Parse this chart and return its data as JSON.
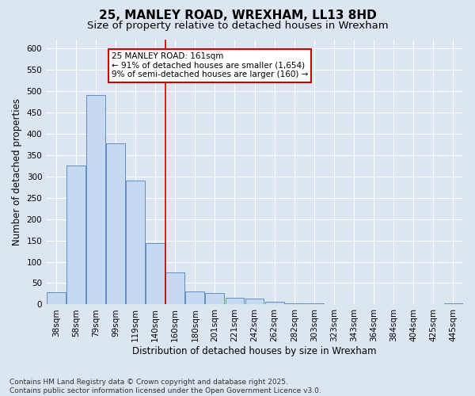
{
  "title": "25, MANLEY ROAD, WREXHAM, LL13 8HD",
  "subtitle": "Size of property relative to detached houses in Wrexham",
  "xlabel": "Distribution of detached houses by size in Wrexham",
  "ylabel": "Number of detached properties",
  "bar_color": "#c5d9f1",
  "bar_edge_color": "#4f81bd",
  "bar_edge_width": 0.6,
  "categories": [
    "38sqm",
    "58sqm",
    "79sqm",
    "99sqm",
    "119sqm",
    "140sqm",
    "160sqm",
    "180sqm",
    "201sqm",
    "221sqm",
    "242sqm",
    "262sqm",
    "282sqm",
    "303sqm",
    "323sqm",
    "343sqm",
    "364sqm",
    "384sqm",
    "404sqm",
    "425sqm",
    "445sqm"
  ],
  "values": [
    28,
    325,
    490,
    378,
    290,
    143,
    75,
    30,
    27,
    15,
    13,
    6,
    3,
    3,
    1,
    0,
    0,
    0,
    0,
    0,
    2
  ],
  "vline_x": 6,
  "vline_color": "#cc0000",
  "annotation_line1": "25 MANLEY ROAD: 161sqm",
  "annotation_line2": "← 91% of detached houses are smaller (1,654)",
  "annotation_line3": "9% of semi-detached houses are larger (160) →",
  "annotation_box_color": "#ffffff",
  "annotation_box_edge_color": "#cc0000",
  "ylim": [
    0,
    620
  ],
  "yticks": [
    0,
    50,
    100,
    150,
    200,
    250,
    300,
    350,
    400,
    450,
    500,
    550,
    600
  ],
  "background_color": "#dce6f1",
  "plot_bg_color": "#dce6f1",
  "footer": "Contains HM Land Registry data © Crown copyright and database right 2025.\nContains public sector information licensed under the Open Government Licence v3.0.",
  "title_fontsize": 11,
  "subtitle_fontsize": 9.5,
  "label_fontsize": 8.5,
  "tick_fontsize": 7.5,
  "footer_fontsize": 6.5,
  "annot_fontsize": 7.5
}
